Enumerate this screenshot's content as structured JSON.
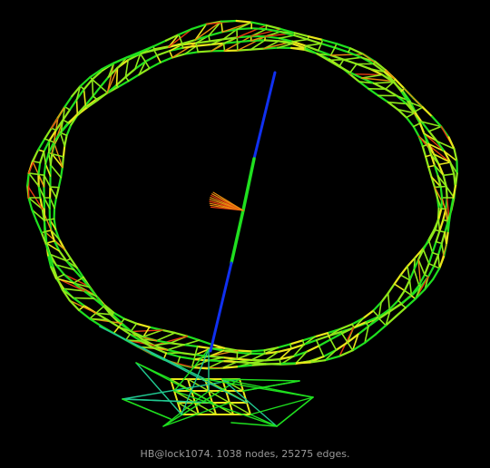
{
  "caption": "HB@lock1074. 1038 nodes, 25275 edges.",
  "colors": {
    "background": "#000000",
    "caption": "#9a9a9a",
    "edge_green": "#1fe01f",
    "edge_lime": "#8fe81a",
    "edge_yellow": "#e8e81a",
    "edge_orange": "#e88a10",
    "edge_red": "#e83a10",
    "edge_teal": "#20c890",
    "edge_blue": "#1030f0"
  }
}
